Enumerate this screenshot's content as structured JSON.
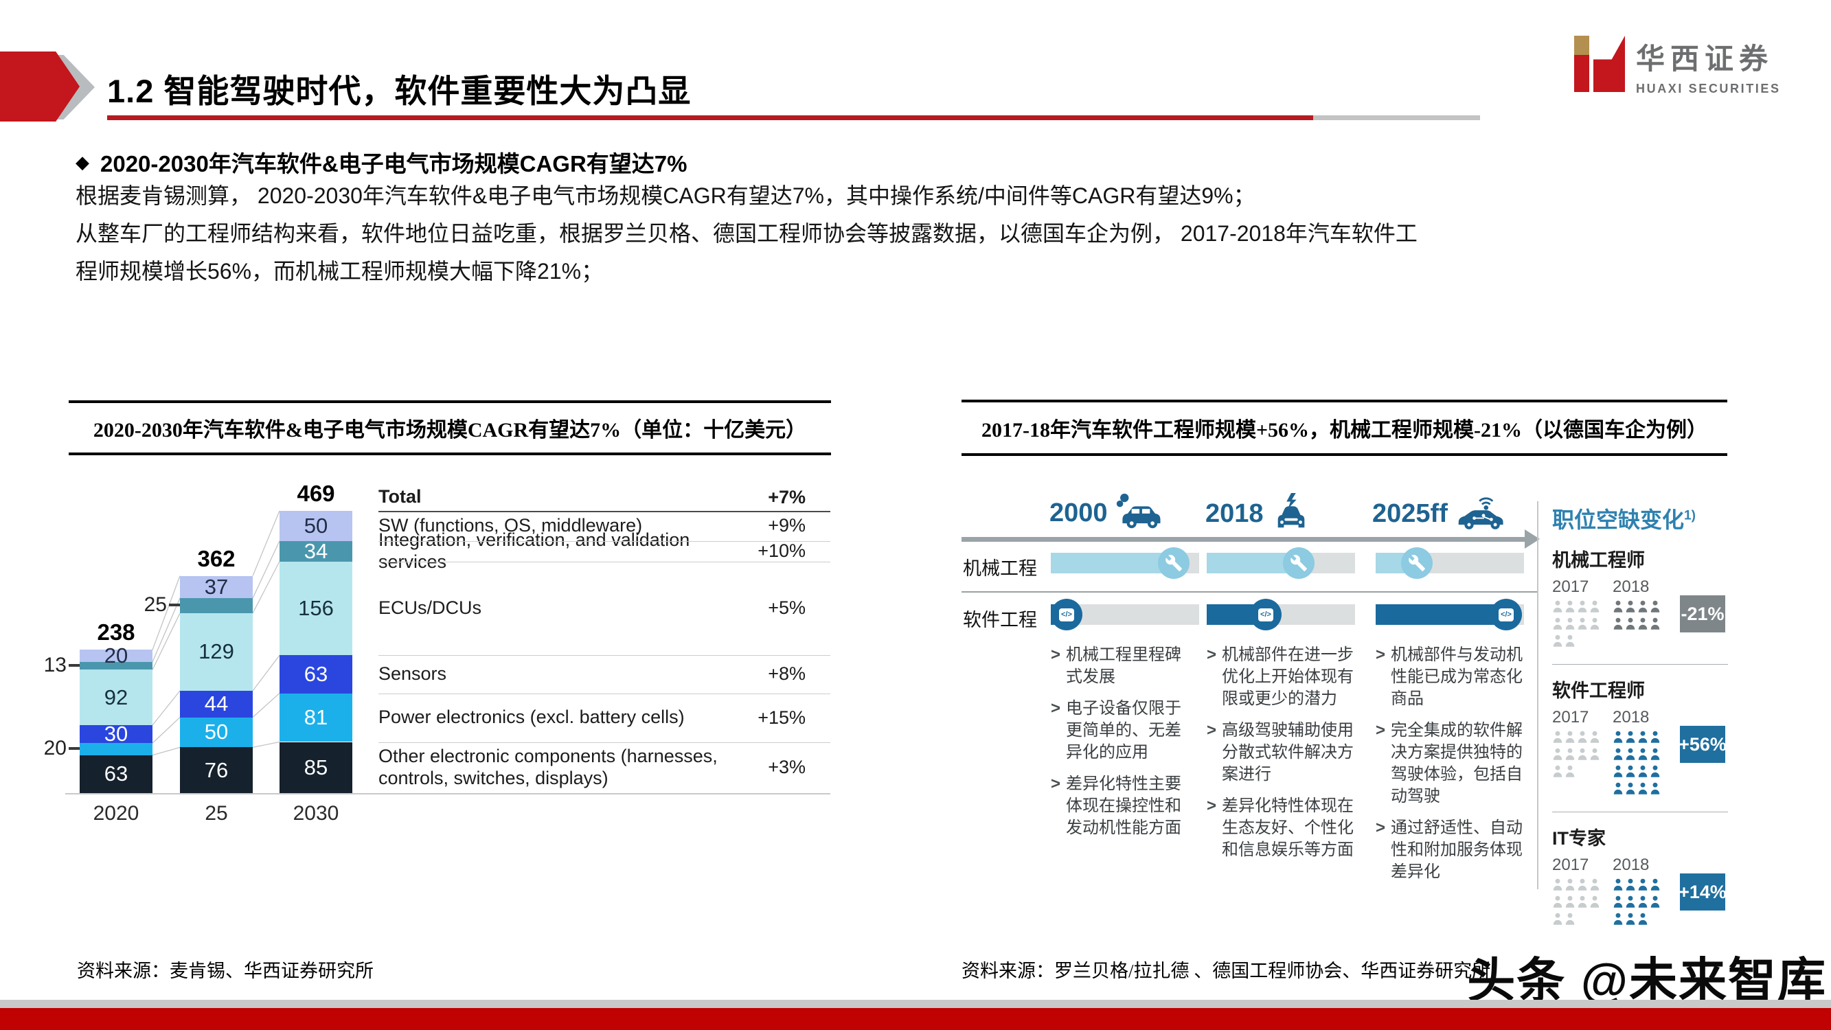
{
  "header": {
    "title": "1.2 智能驾驶时代，软件重要性大为凸显"
  },
  "logo": {
    "cn": "华西证券",
    "en": "HUAXI SECURITIES"
  },
  "bullet": {
    "text": "2020-2030年汽车软件&电子电气市场规模CAGR有望达7%"
  },
  "paragraph": {
    "lines": [
      "根据麦肯锡测算， 2020-2030年汽车软件&电子电气市场规模CAGR有望达7%，其中操作系统/中间件等CAGR有望达9%；",
      "从整车厂的工程师结构来看，软件地位日益吃重，根据罗兰贝格、德国工程师协会等披露数据，以德国车企为例， 2017-2018年汽车软件工",
      "程师规模增长56%，而机械工程师规模大幅下降21%；"
    ]
  },
  "left_chart": {
    "title": "2020-2030年汽车软件&电子电气市场规模CAGR有望达7%（单位：十亿美元）",
    "source": "资料来源：麦肯锡、华西证券研究所",
    "chart_data": {
      "type": "bar",
      "stacked": true,
      "categories": [
        "2020",
        "25",
        "2030"
      ],
      "totals": [
        238,
        362,
        469
      ],
      "total_label": "Total",
      "total_cagr": "+7%",
      "unit": "十亿美元",
      "series": [
        {
          "name": "Other electronic components (harnesses, controls, switches, displays)",
          "cagr": "+3%",
          "color": "#15212d",
          "text_color": "#ffffff",
          "values": [
            63,
            76,
            85
          ]
        },
        {
          "name": "Power electronics (excl. battery cells)",
          "cagr": "+15%",
          "color": "#1cb0ea",
          "text_color": "#ffffff",
          "values": [
            20,
            50,
            81
          ]
        },
        {
          "name": "Sensors",
          "cagr": "+8%",
          "color": "#2a46df",
          "text_color": "#ffffff",
          "values": [
            30,
            44,
            63
          ]
        },
        {
          "name": "ECUs/DCUs",
          "cagr": "+5%",
          "color": "#b5e6ee",
          "text_color": "#17303d",
          "values": [
            92,
            129,
            156
          ]
        },
        {
          "name": "Integration, verification, and validation services",
          "cagr": "+10%",
          "color": "#4a97ad",
          "text_color": "#ffffff",
          "values": [
            13,
            25,
            34
          ]
        },
        {
          "name": "SW (functions, OS, middleware)",
          "cagr": "+9%",
          "color": "#b7c4f2",
          "text_color": "#222c44",
          "values": [
            20,
            37,
            50
          ]
        }
      ]
    }
  },
  "right_chart": {
    "title": "2017-18年汽车软件工程师规模+56%，机械工程师规模-21%（以德国车企为例）",
    "source": "资料来源：罗兰贝格/拉扎德 、德国工程师协会、华西证券研究所",
    "timeline": [
      {
        "year": "2000",
        "icon": "car-exhaust-icon"
      },
      {
        "year": "2018",
        "icon": "car-electric-icon"
      },
      {
        "year": "2025ff",
        "icon": "car-connected-icon"
      }
    ],
    "rows": [
      {
        "label": "机械工程",
        "icon": "wrench-icon",
        "fill_color": "#a6d8e7",
        "fills": [
          0.83,
          0.62,
          0.28
        ]
      },
      {
        "label": "软件工程",
        "icon": "code-icon",
        "fill_color": "#1a6a9e",
        "fills": [
          0.055,
          0.4,
          0.88
        ]
      }
    ],
    "columns": [
      {
        "bullets": [
          "机械工程里程碑式发展",
          "电子设备仅限于更简单的、无差异化的应用",
          "差异化特性主要体现在操控性和发动机性能方面"
        ]
      },
      {
        "bullets": [
          "机械部件在进一步优化上开始体现有限或更少的潜力",
          "高级驾驶辅助使用分散式软件解决方案进行",
          "差异化特性体现在生态友好、个性化和信息娱乐等方面"
        ]
      },
      {
        "bullets": [
          "机械部件与发动机性能已成为常态化商品",
          "完全集成的软件解决方案提供独特的驾驶体验，包括自动驾驶",
          "通过舒适性、自动性和附加服务体现差异化"
        ]
      }
    ],
    "stats": {
      "heading": "职位空缺变化",
      "heading_sup": "1)",
      "colors": {
        "light": "#c7ccce",
        "dark": "#70777a",
        "blue": "#1f6f9f",
        "badge_gray": "#7e8689",
        "badge_blue": "#1f6f9f"
      },
      "sections": [
        {
          "title": "机械工程师",
          "y2017": {
            "label": "2017",
            "rows": [
              4,
              4,
              2
            ],
            "color": "light"
          },
          "y2018": {
            "label": "2018",
            "rows": [
              4,
              4
            ],
            "color": "dark"
          },
          "badge": {
            "text": "-21%",
            "color": "badge_gray"
          }
        },
        {
          "title": "软件工程师",
          "y2017": {
            "label": "2017",
            "rows": [
              4,
              4,
              2
            ],
            "color": "light"
          },
          "y2018": {
            "label": "2018",
            "rows": [
              4,
              4,
              4,
              4
            ],
            "color": "blue"
          },
          "badge": {
            "text": "+56%",
            "color": "badge_blue"
          }
        },
        {
          "title": "IT专家",
          "y2017": {
            "label": "2017",
            "rows": [
              4,
              4,
              2
            ],
            "color": "light"
          },
          "y2018": {
            "label": "2018",
            "rows": [
              4,
              4,
              3
            ],
            "color": "blue"
          },
          "badge": {
            "text": "+14%",
            "color": "badge_blue"
          }
        }
      ]
    }
  },
  "watermark": {
    "text": "头条 @未来智库"
  }
}
